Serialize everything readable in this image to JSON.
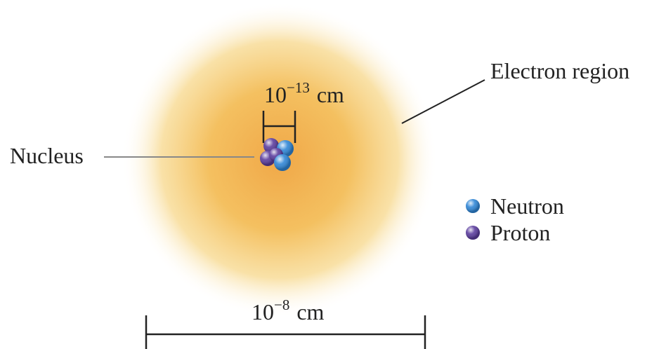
{
  "labels": {
    "electron_region": "Electron region",
    "nucleus": "Nucleus"
  },
  "scale_nucleus": {
    "base": "10",
    "exponent": "−13",
    "unit": "cm"
  },
  "scale_atom": {
    "base": "10",
    "exponent": "−8",
    "unit": "cm"
  },
  "legend": [
    {
      "label": "Neutron",
      "color": "#2f86d6"
    },
    {
      "label": "Proton",
      "color": "#5b3d9e"
    }
  ]
}
